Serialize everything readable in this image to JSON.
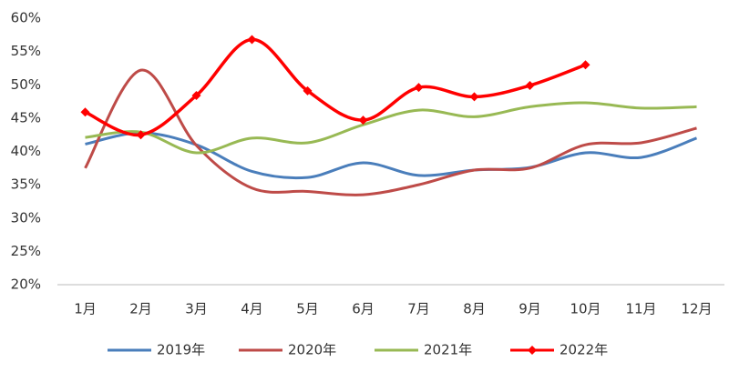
{
  "chart_data": {
    "type": "line",
    "categories": [
      "1月",
      "2月",
      "3月",
      "4月",
      "5月",
      "6月",
      "7月",
      "8月",
      "9月",
      "10月",
      "11月",
      "12月"
    ],
    "series": [
      {
        "name": "2019年",
        "color": "#4a7ebb",
        "marker": false,
        "values": [
          41.1,
          42.8,
          41.0,
          37.0,
          36.1,
          38.3,
          36.4,
          37.2,
          37.6,
          39.8,
          39.1,
          42.0
        ]
      },
      {
        "name": "2020年",
        "color": "#be4b48",
        "marker": false,
        "values": [
          37.5,
          52.2,
          40.9,
          34.5,
          34.0,
          33.5,
          35.0,
          37.2,
          37.5,
          41.0,
          41.3,
          43.5
        ]
      },
      {
        "name": "2021年",
        "color": "#98b954",
        "marker": false,
        "values": [
          42.1,
          42.9,
          39.8,
          42.0,
          41.3,
          44.0,
          46.2,
          45.2,
          46.7,
          47.3,
          46.5,
          46.7
        ]
      },
      {
        "name": "2022年",
        "color": "#ff0000",
        "marker": true,
        "values": [
          45.9,
          42.5,
          48.4,
          56.8,
          49.1,
          44.7,
          49.6,
          48.2,
          49.9,
          53.0,
          null,
          null
        ]
      }
    ],
    "ylim": [
      20,
      60
    ],
    "yticks": [
      {
        "value": 20,
        "label": "20%"
      },
      {
        "value": 25,
        "label": "25%"
      },
      {
        "value": 30,
        "label": "30%"
      },
      {
        "value": 35,
        "label": "35%"
      },
      {
        "value": 40,
        "label": "40%"
      },
      {
        "value": 45,
        "label": "45%"
      },
      {
        "value": 50,
        "label": "50%"
      },
      {
        "value": 55,
        "label": "55%"
      },
      {
        "value": 60,
        "label": "60%"
      }
    ],
    "grid": false,
    "legend": "bottom"
  }
}
